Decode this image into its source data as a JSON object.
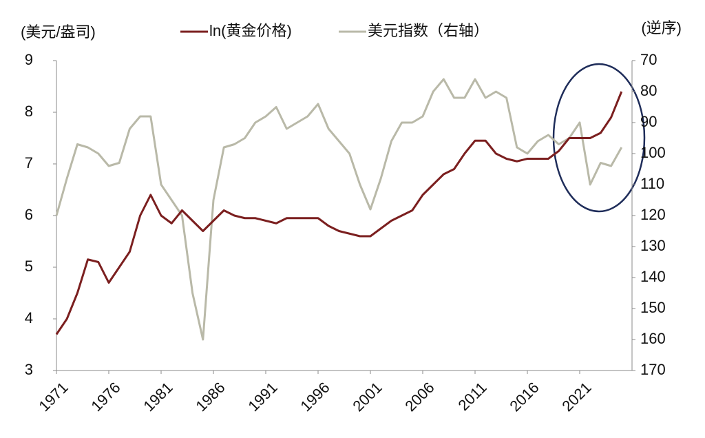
{
  "chart_data": {
    "type": "line",
    "y_label": "(美元/盎司)",
    "y2_label": "(逆序)",
    "x": [
      1971,
      1972,
      1973,
      1974,
      1975,
      1976,
      1977,
      1978,
      1979,
      1980,
      1981,
      1982,
      1983,
      1984,
      1985,
      1986,
      1987,
      1988,
      1989,
      1990,
      1991,
      1992,
      1993,
      1994,
      1995,
      1996,
      1997,
      1998,
      1999,
      2000,
      2001,
      2002,
      2003,
      2004,
      2005,
      2006,
      2007,
      2008,
      2009,
      2010,
      2011,
      2012,
      2013,
      2014,
      2015,
      2016,
      2017,
      2018,
      2019,
      2020,
      2021,
      2022,
      2023,
      2024,
      2025
    ],
    "series": [
      {
        "name": "ln(黄金价格)",
        "color": "#7b1f1f",
        "axis": "y",
        "values": [
          3.7,
          4.0,
          4.5,
          5.15,
          5.1,
          4.7,
          5.0,
          5.3,
          6.0,
          6.4,
          6.0,
          5.85,
          6.1,
          5.9,
          5.7,
          5.9,
          6.1,
          6.0,
          5.95,
          5.95,
          5.9,
          5.85,
          5.95,
          5.95,
          5.95,
          5.95,
          5.8,
          5.7,
          5.65,
          5.6,
          5.6,
          5.75,
          5.9,
          6.0,
          6.1,
          6.4,
          6.6,
          6.8,
          6.9,
          7.2,
          7.45,
          7.45,
          7.2,
          7.1,
          7.05,
          7.1,
          7.1,
          7.1,
          7.25,
          7.5,
          7.5,
          7.5,
          7.6,
          7.9,
          8.4
        ]
      },
      {
        "name": "美元指数（右轴）",
        "color": "#b9b9a8",
        "axis": "y2",
        "values": [
          120,
          108,
          97,
          98,
          100,
          104,
          103,
          92,
          88,
          88,
          110,
          115,
          120,
          145,
          160,
          115,
          98,
          97,
          95,
          90,
          88,
          85,
          92,
          90,
          88,
          84,
          92,
          96,
          100,
          110,
          118,
          108,
          96,
          90,
          90,
          88,
          80,
          76,
          82,
          82,
          76,
          82,
          80,
          82,
          98,
          100,
          96,
          94,
          97,
          95,
          90,
          110,
          103,
          104,
          98
        ]
      }
    ],
    "xlim": [
      1971,
      2026
    ],
    "xticks": [
      1971,
      1976,
      1981,
      1986,
      1991,
      1996,
      2001,
      2006,
      2011,
      2016,
      2021
    ],
    "ylim": [
      3,
      9
    ],
    "yticks": [
      3,
      4,
      5,
      6,
      7,
      8,
      9
    ],
    "y2lim": [
      70,
      170
    ],
    "y2ticks": [
      70,
      80,
      90,
      100,
      110,
      120,
      130,
      140,
      150,
      160,
      170
    ],
    "y2_inverted": true,
    "grid": false
  }
}
